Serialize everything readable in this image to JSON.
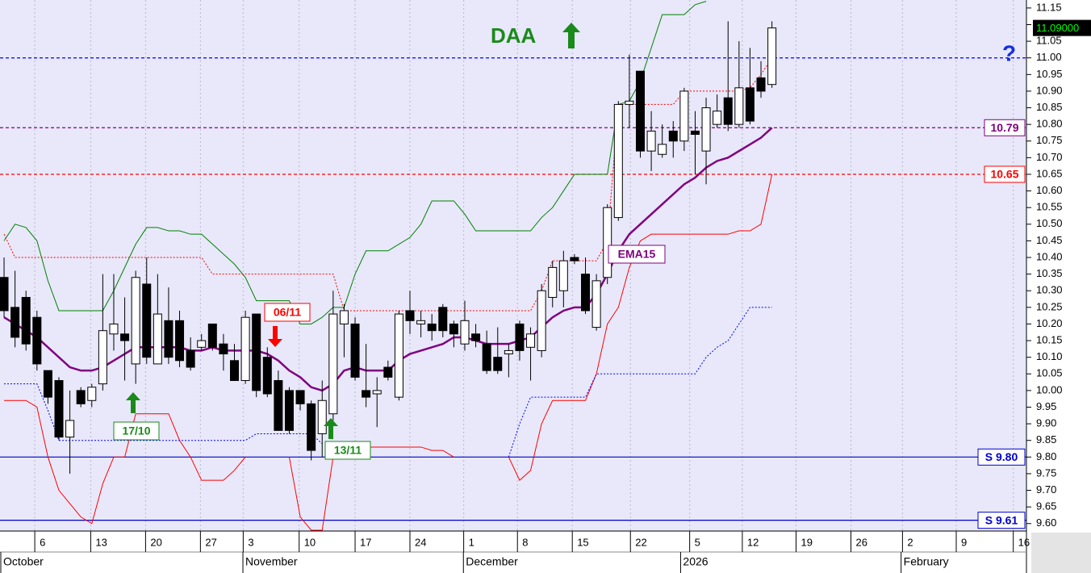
{
  "chart_data": {
    "type": "candlestick",
    "title": "DAA",
    "annotations": {
      "question": "?",
      "signal_1": "17/10",
      "signal_2": "06/11",
      "signal_3": "13/11",
      "ema_label": "EMA15"
    },
    "x": [
      0,
      1,
      2,
      3,
      4,
      5,
      6,
      7,
      8,
      9,
      10,
      11,
      12,
      13,
      14,
      15,
      16,
      17,
      18,
      19,
      20,
      21,
      22,
      23,
      24,
      25,
      26,
      27,
      28,
      29,
      30,
      31,
      32,
      33,
      34,
      35,
      36,
      37,
      38,
      39,
      40,
      41,
      42,
      43,
      44,
      45,
      46,
      47,
      48,
      49,
      50,
      51,
      52,
      53,
      54,
      55,
      56,
      57,
      58,
      59,
      60,
      61,
      62,
      63,
      64,
      65,
      66,
      67,
      68,
      69,
      70
    ],
    "open": [
      10.34,
      10.25,
      10.28,
      10.22,
      10.06,
      10.03,
      9.86,
      10.0,
      9.97,
      10.02,
      10.17,
      10.17,
      10.08,
      10.32,
      10.08,
      10.21,
      10.21,
      10.12,
      10.13,
      10.2,
      10.14,
      10.09,
      10.03,
      10.23,
      10.1,
      10.03,
      10.0,
      10.0,
      9.96,
      9.87,
      9.93,
      10.2,
      10.2,
      10.0,
      9.99,
      10.07,
      9.98,
      10.24,
      10.2,
      10.2,
      10.25,
      10.2,
      10.14,
      10.17,
      10.14,
      10.1,
      10.11,
      10.2,
      10.13,
      10.12,
      10.28,
      10.3,
      10.4,
      10.35,
      10.19,
      10.34,
      10.52,
      10.86,
      10.96,
      10.72,
      10.71,
      10.78,
      10.75,
      10.78,
      10.72,
      10.8,
      10.88,
      10.8,
      10.91,
      10.94,
      10.92
    ],
    "high": [
      10.4,
      10.36,
      10.3,
      10.24,
      10.06,
      10.04,
      10.0,
      10.01,
      10.02,
      10.35,
      10.35,
      10.28,
      10.36,
      10.4,
      10.35,
      10.31,
      10.24,
      10.16,
      10.17,
      10.2,
      10.17,
      10.14,
      10.24,
      10.23,
      10.13,
      10.06,
      10.01,
      10.0,
      9.97,
      10.03,
      10.3,
      10.26,
      10.22,
      10.14,
      10.04,
      10.09,
      10.24,
      10.3,
      10.24,
      10.23,
      10.26,
      10.21,
      10.27,
      10.2,
      10.18,
      10.19,
      10.14,
      10.21,
      10.19,
      10.32,
      10.39,
      10.42,
      10.41,
      10.4,
      10.35,
      10.56,
      10.87,
      11.01,
      10.96,
      10.84,
      10.8,
      10.81,
      10.91,
      10.84,
      10.88,
      10.89,
      11.11,
      11.05,
      11.03,
      10.99,
      11.11
    ],
    "low": [
      10.22,
      10.13,
      10.12,
      10.06,
      9.96,
      9.85,
      9.75,
      9.95,
      9.95,
      10.0,
      10.12,
      10.03,
      10.02,
      10.08,
      10.08,
      10.08,
      10.07,
      10.06,
      10.12,
      10.12,
      10.06,
      10.03,
      10.02,
      9.98,
      9.98,
      9.88,
      9.87,
      9.94,
      9.79,
      9.8,
      9.91,
      10.1,
      10.03,
      9.95,
      9.89,
      10.03,
      9.97,
      10.17,
      10.16,
      10.15,
      10.16,
      10.13,
      10.12,
      10.13,
      10.05,
      10.05,
      10.04,
      10.09,
      10.03,
      10.1,
      10.25,
      10.25,
      10.38,
      10.23,
      10.18,
      10.32,
      10.51,
      10.79,
      10.7,
      10.66,
      10.7,
      10.7,
      10.72,
      10.65,
      10.62,
      10.79,
      10.78,
      10.79,
      10.8,
      10.88,
      10.91
    ],
    "close": [
      10.24,
      10.16,
      10.14,
      10.08,
      9.98,
      9.86,
      9.91,
      9.96,
      10.01,
      10.18,
      10.2,
      10.15,
      10.34,
      10.1,
      10.23,
      10.1,
      10.09,
      10.07,
      10.15,
      10.13,
      10.11,
      10.03,
      10.22,
      10.0,
      9.99,
      9.88,
      9.88,
      9.96,
      9.82,
      9.97,
      10.23,
      10.24,
      10.04,
      9.98,
      10.0,
      10.04,
      10.23,
      10.21,
      10.21,
      10.18,
      10.18,
      10.17,
      10.21,
      10.15,
      10.06,
      10.06,
      10.12,
      10.12,
      10.17,
      10.3,
      10.37,
      10.39,
      10.39,
      10.24,
      10.33,
      10.55,
      10.86,
      10.87,
      10.72,
      10.78,
      10.74,
      10.75,
      10.9,
      10.77,
      10.85,
      10.84,
      10.8,
      10.91,
      10.81,
      10.9,
      11.09
    ],
    "series": [
      {
        "name": "EMA15",
        "color": "#800080",
        "width": 2.5,
        "style": "solid",
        "values": [
          10.22,
          10.2,
          10.18,
          10.16,
          10.13,
          10.1,
          10.07,
          10.06,
          10.06,
          10.07,
          10.09,
          10.11,
          10.13,
          10.13,
          10.13,
          10.13,
          10.13,
          10.12,
          10.12,
          10.13,
          10.12,
          10.12,
          10.12,
          10.12,
          10.11,
          10.09,
          10.06,
          10.04,
          10.01,
          10.0,
          10.02,
          10.06,
          10.07,
          10.06,
          10.06,
          10.06,
          10.09,
          10.11,
          10.12,
          10.13,
          10.14,
          10.16,
          10.16,
          10.15,
          10.14,
          10.14,
          10.14,
          10.15,
          10.16,
          10.19,
          10.22,
          10.24,
          10.25,
          10.25,
          10.29,
          10.35,
          10.42,
          10.47,
          10.5,
          10.53,
          10.56,
          10.59,
          10.62,
          10.64,
          10.67,
          10.69,
          10.7,
          10.72,
          10.74,
          10.76,
          10.79
        ]
      },
      {
        "color": "#008000",
        "width": 1,
        "style": "solid",
        "values": [
          10.45,
          10.5,
          10.49,
          10.45,
          10.33,
          10.24,
          10.24,
          10.24,
          10.24,
          10.24,
          10.3,
          10.37,
          10.44,
          10.49,
          10.49,
          10.48,
          10.48,
          10.47,
          10.47,
          10.44,
          10.41,
          10.38,
          10.34,
          10.27,
          10.27,
          10.27,
          10.27,
          10.2,
          10.2,
          10.22,
          10.25,
          10.25,
          10.35,
          10.42,
          10.42,
          10.42,
          10.44,
          10.46,
          10.5,
          10.57,
          10.57,
          10.57,
          10.53,
          10.48,
          10.48,
          10.48,
          10.48,
          10.48,
          10.48,
          10.52,
          10.55,
          10.6,
          10.65,
          10.65,
          10.65,
          10.65,
          10.86,
          10.87,
          10.93,
          11.03,
          11.13,
          11.13,
          11.13,
          11.16,
          11.17,
          null,
          null,
          null,
          null,
          null,
          null
        ]
      },
      {
        "color": "#ff0000",
        "width": 1,
        "style": "solid",
        "values": [
          9.97,
          9.97,
          9.97,
          9.95,
          9.8,
          9.7,
          9.66,
          9.62,
          9.6,
          9.72,
          9.8,
          9.8,
          9.93,
          9.93,
          9.93,
          9.93,
          9.85,
          9.8,
          9.73,
          9.73,
          9.73,
          9.76,
          9.8,
          null,
          null,
          null,
          9.8,
          9.62,
          9.58,
          9.58,
          9.8,
          9.83,
          9.83,
          9.83,
          9.83,
          9.83,
          9.83,
          9.83,
          9.83,
          9.82,
          9.82,
          9.8,
          null,
          null,
          null,
          null,
          9.8,
          9.73,
          9.76,
          9.9,
          9.97,
          9.97,
          9.97,
          9.97,
          10.05,
          10.2,
          10.25,
          10.37,
          10.45,
          10.47,
          10.47,
          10.47,
          10.47,
          10.47,
          10.47,
          10.47,
          10.47,
          10.48,
          10.48,
          10.5,
          10.65
        ]
      },
      {
        "color": "#ff0000",
        "width": 1,
        "style": "dotted",
        "values": [
          10.47,
          10.4,
          10.4,
          10.4,
          10.4,
          10.4,
          10.4,
          10.4,
          10.4,
          10.4,
          10.4,
          10.4,
          10.4,
          10.4,
          10.4,
          10.4,
          10.4,
          10.4,
          10.4,
          10.35,
          10.35,
          10.35,
          10.35,
          10.35,
          10.35,
          10.35,
          10.35,
          10.35,
          10.35,
          10.35,
          10.35,
          10.24,
          10.24,
          10.24,
          10.24,
          10.24,
          10.24,
          10.24,
          10.24,
          10.24,
          10.24,
          10.24,
          10.24,
          10.24,
          10.24,
          10.24,
          10.24,
          10.24,
          10.24,
          10.3,
          10.39,
          10.39,
          10.39,
          10.39,
          10.39,
          10.45,
          10.86,
          10.86,
          10.86,
          10.86,
          10.86,
          10.86,
          10.9,
          10.9,
          10.9,
          10.9,
          10.9,
          10.9,
          10.91,
          10.95,
          11.0
        ]
      },
      {
        "color": "#0000ff",
        "width": 1,
        "style": "dotted",
        "values": [
          10.02,
          10.02,
          10.02,
          10.02,
          9.94,
          9.85,
          9.85,
          9.85,
          9.85,
          9.85,
          9.85,
          9.85,
          9.85,
          9.85,
          9.85,
          9.85,
          9.85,
          9.85,
          9.85,
          9.85,
          9.85,
          9.85,
          9.85,
          9.87,
          9.87,
          9.87,
          9.87,
          9.87,
          9.87,
          9.84,
          null,
          null,
          null,
          null,
          null,
          null,
          null,
          null,
          null,
          null,
          null,
          null,
          null,
          null,
          null,
          null,
          9.8,
          9.9,
          9.98,
          9.98,
          9.98,
          9.98,
          9.98,
          9.98,
          10.05,
          10.05,
          10.05,
          10.05,
          10.05,
          10.05,
          10.05,
          10.05,
          10.05,
          10.05,
          10.1,
          10.13,
          10.15,
          10.2,
          10.25,
          10.25,
          10.25
        ]
      }
    ],
    "levels": [
      {
        "value": 11.0,
        "color": "#0000ff",
        "style": "dashed"
      },
      {
        "value": 10.79,
        "label": "10.79",
        "color": "#800080",
        "style": "dashed"
      },
      {
        "value": 10.65,
        "label": "10.65",
        "color": "#ff0000",
        "style": "dashed"
      },
      {
        "value": 9.8,
        "label": "S 9.80",
        "color": "#0000cc",
        "style": "solid"
      },
      {
        "value": 9.61,
        "label": "S 9.61",
        "color": "#0000cc",
        "style": "solid"
      }
    ],
    "last_price": {
      "value": 11.09,
      "label": "11.09000"
    },
    "xlim": [
      -0.37,
      93.2
    ],
    "ylim": [
      9.58,
      11.174
    ],
    "yticks": [
      {
        "value": 9.6,
        "label": "9.60"
      },
      {
        "value": 9.65,
        "label": "9.65"
      },
      {
        "value": 9.7,
        "label": "9.70"
      },
      {
        "value": 9.75,
        "label": "9.75"
      },
      {
        "value": 9.8,
        "label": "9.80"
      },
      {
        "value": 9.85,
        "label": "9.85"
      },
      {
        "value": 9.9,
        "label": "9.90"
      },
      {
        "value": 9.95,
        "label": "9.95"
      },
      {
        "value": 10.0,
        "label": "10.00"
      },
      {
        "value": 10.05,
        "label": "10.05"
      },
      {
        "value": 10.1,
        "label": "10.10"
      },
      {
        "value": 10.15,
        "label": "10.15"
      },
      {
        "value": 10.2,
        "label": "10.20"
      },
      {
        "value": 10.25,
        "label": "10.25"
      },
      {
        "value": 10.3,
        "label": "10.30"
      },
      {
        "value": 10.35,
        "label": "10.35"
      },
      {
        "value": 10.4,
        "label": "10.40"
      },
      {
        "value": 10.45,
        "label": "10.45"
      },
      {
        "value": 10.5,
        "label": "10.50"
      },
      {
        "value": 10.55,
        "label": "10.55"
      },
      {
        "value": 10.6,
        "label": "10.60"
      },
      {
        "value": 10.65,
        "label": "10.65"
      },
      {
        "value": 10.7,
        "label": "10.70"
      },
      {
        "value": 10.75,
        "label": "10.75"
      },
      {
        "value": 10.8,
        "label": "10.80"
      },
      {
        "value": 10.85,
        "label": "10.85"
      },
      {
        "value": 10.9,
        "label": "10.90"
      },
      {
        "value": 10.95,
        "label": "10.95"
      },
      {
        "value": 11.0,
        "label": "11.00"
      },
      {
        "value": 11.05,
        "label": "11.05"
      },
      {
        "value": 11.1,
        "label": "11.10"
      },
      {
        "value": 11.15,
        "label": "11.15"
      }
    ],
    "xticks": [
      {
        "value": 2.8,
        "label": "6"
      },
      {
        "value": 7.9,
        "label": "13"
      },
      {
        "value": 12.9,
        "label": "20"
      },
      {
        "value": 17.9,
        "label": "27"
      },
      {
        "value": 21.8,
        "label": "3"
      },
      {
        "value": 26.9,
        "label": "10"
      },
      {
        "value": 32.0,
        "label": "17"
      },
      {
        "value": 37.0,
        "label": "24"
      },
      {
        "value": 41.9,
        "label": "1"
      },
      {
        "value": 46.8,
        "label": "8"
      },
      {
        "value": 51.8,
        "label": "15"
      },
      {
        "value": 57.1,
        "label": "22"
      },
      {
        "value": 62.5,
        "label": "5"
      },
      {
        "value": 67.3,
        "label": "12"
      },
      {
        "value": 72.2,
        "label": "19"
      },
      {
        "value": 77.2,
        "label": "26"
      },
      {
        "value": 81.9,
        "label": "2"
      },
      {
        "value": 86.8,
        "label": "9"
      },
      {
        "value": 92.0,
        "label": "16"
      }
    ],
    "months": [
      {
        "value": -0.37,
        "label": "October"
      },
      {
        "value": 21.7,
        "label": "November"
      },
      {
        "value": 41.8,
        "label": "December"
      },
      {
        "value": 61.6,
        "label": "2026"
      },
      {
        "value": 81.7,
        "label": "February"
      }
    ],
    "grid": true
  }
}
